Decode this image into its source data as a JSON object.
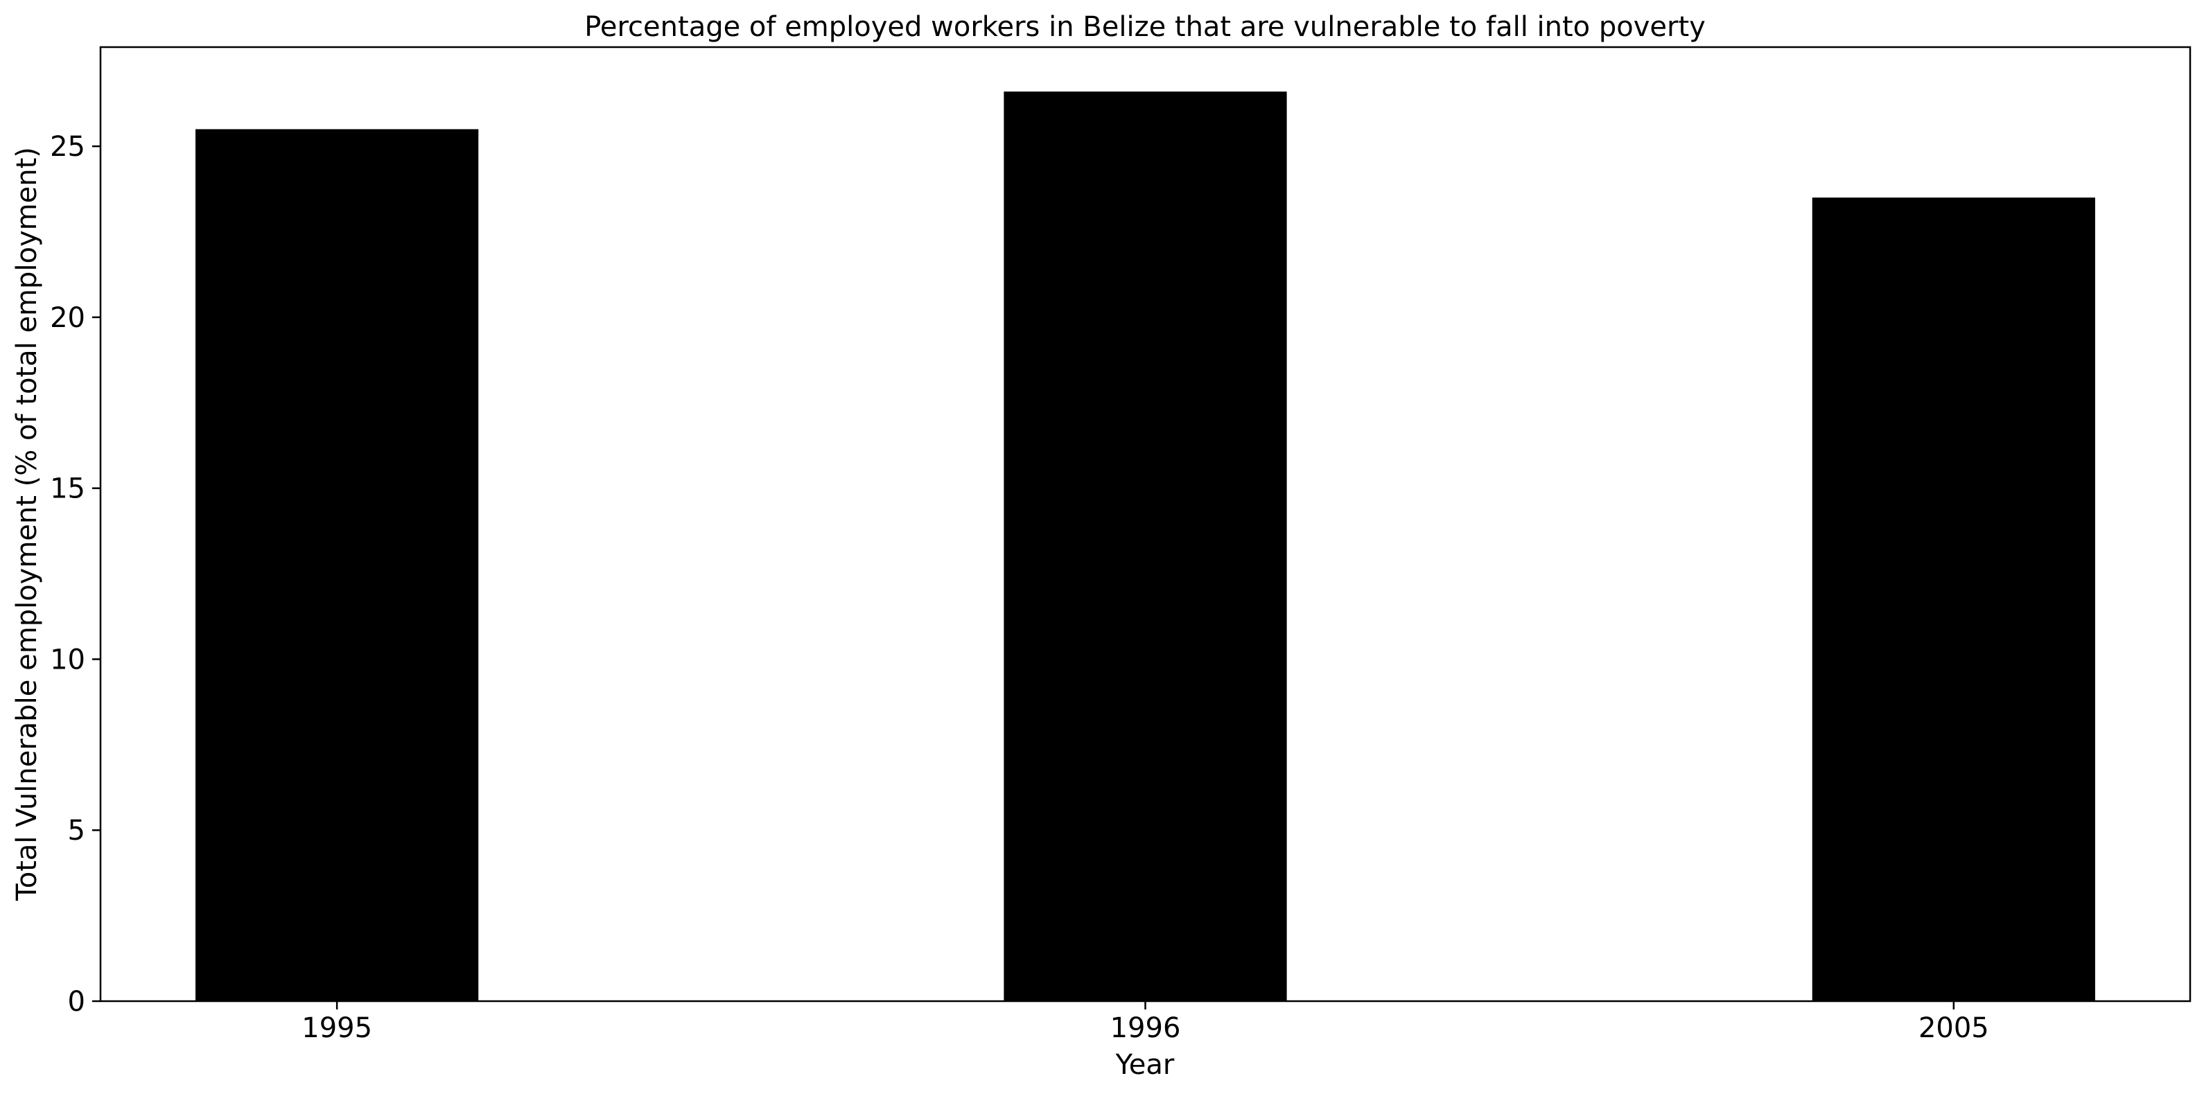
{
  "chart_data": {
    "type": "bar",
    "title": "Percentage of employed workers in Belize that are vulnerable to fall into poverty",
    "xlabel": "Year",
    "ylabel": "Total Vulnerable employment (% of total employment)",
    "categories": [
      "1995",
      "1996",
      "2005"
    ],
    "values": [
      25.5,
      26.6,
      23.5
    ],
    "ylim": [
      0,
      27.9
    ],
    "yticks": [
      0,
      5,
      10,
      15,
      20,
      25
    ],
    "grid": false,
    "legend": "none",
    "bar_color": "#000000"
  }
}
